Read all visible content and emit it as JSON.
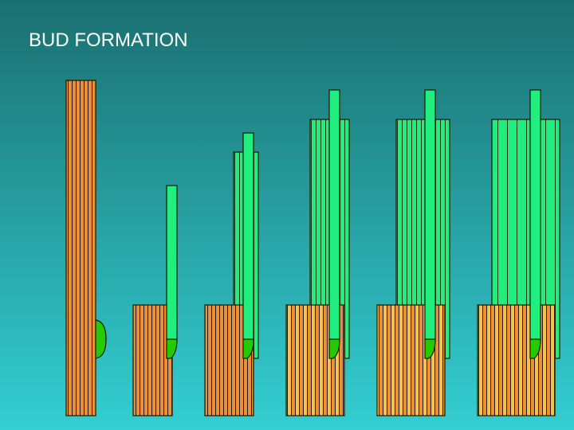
{
  "title": "BUD FORMATION"
}
